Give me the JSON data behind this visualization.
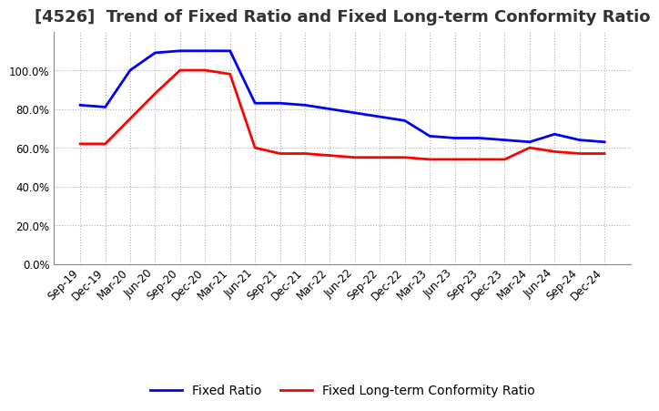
{
  "title": "[4526]  Trend of Fixed Ratio and Fixed Long-term Conformity Ratio",
  "x_labels": [
    "Sep-19",
    "Dec-19",
    "Mar-20",
    "Jun-20",
    "Sep-20",
    "Dec-20",
    "Mar-21",
    "Jun-21",
    "Sep-21",
    "Dec-21",
    "Mar-22",
    "Jun-22",
    "Sep-22",
    "Dec-22",
    "Mar-23",
    "Jun-23",
    "Sep-23",
    "Dec-23",
    "Mar-24",
    "Jun-24",
    "Sep-24",
    "Dec-24"
  ],
  "fixed_ratio": [
    82,
    81,
    100,
    109,
    110,
    110,
    110,
    83,
    83,
    82,
    80,
    78,
    76,
    74,
    66,
    65,
    65,
    64,
    63,
    67,
    64,
    63
  ],
  "fixed_lt_ratio": [
    62,
    62,
    75,
    88,
    100,
    100,
    98,
    60,
    57,
    57,
    56,
    55,
    55,
    55,
    54,
    54,
    54,
    54,
    60,
    58,
    57,
    57
  ],
  "fixed_ratio_color": "#0000FF",
  "fixed_lt_ratio_color": "#FF0000",
  "ylim": [
    0,
    120
  ],
  "yticks": [
    0,
    20,
    40,
    60,
    80,
    100
  ],
  "background_color": "#ffffff",
  "grid_color": "#b0b0b0",
  "title_fontsize": 13,
  "axis_fontsize": 8.5,
  "legend_fontsize": 10
}
